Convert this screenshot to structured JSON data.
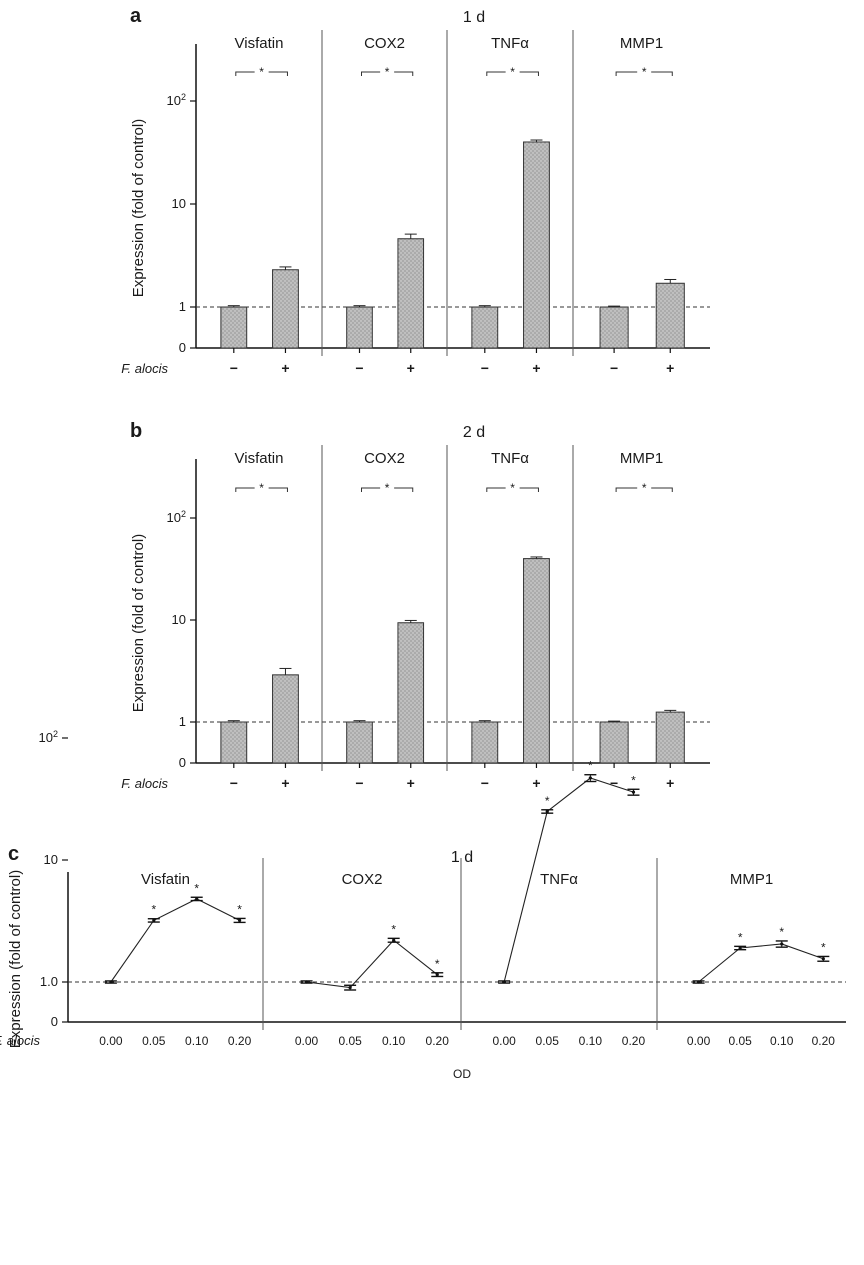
{
  "chart_data": [
    {
      "panel": "a",
      "type": "bar",
      "title": "1 d",
      "ylabel": "Expression (fold of control)",
      "yscale": "log",
      "yticks": [
        "0",
        "1",
        "10",
        "10²"
      ],
      "baseline_value": 1,
      "xlabel": "F. alocis",
      "categories": [
        "−",
        "+"
      ],
      "significance_mark": "*",
      "groups": [
        {
          "name": "Visfatin",
          "values": [
            1.0,
            2.3
          ],
          "errors": [
            0.03,
            0.15
          ]
        },
        {
          "name": "COX2",
          "values": [
            1.0,
            4.6
          ],
          "errors": [
            0.03,
            0.5
          ]
        },
        {
          "name": "TNFα",
          "values": [
            1.0,
            40.0
          ],
          "errors": [
            0.03,
            1.8
          ]
        },
        {
          "name": "MMP1",
          "values": [
            1.0,
            1.7
          ],
          "errors": [
            0.02,
            0.15
          ]
        }
      ]
    },
    {
      "panel": "b",
      "type": "bar",
      "title": "2 d",
      "ylabel": "Expression (fold of control)",
      "yscale": "log",
      "yticks": [
        "0",
        "1",
        "10",
        "10²"
      ],
      "baseline_value": 1,
      "xlabel": "F. alocis",
      "categories": [
        "−",
        "+"
      ],
      "significance_mark": "*",
      "groups": [
        {
          "name": "Visfatin",
          "values": [
            1.0,
            2.9
          ],
          "errors": [
            0.03,
            0.45
          ]
        },
        {
          "name": "COX2",
          "values": [
            1.0,
            9.4
          ],
          "errors": [
            0.03,
            0.5
          ]
        },
        {
          "name": "TNFα",
          "values": [
            1.0,
            40.0
          ],
          "errors": [
            0.03,
            1.5
          ]
        },
        {
          "name": "MMP1",
          "values": [
            1.0,
            1.25
          ],
          "errors": [
            0.02,
            0.05
          ]
        }
      ]
    },
    {
      "panel": "c",
      "type": "line",
      "title": "1 d",
      "ylabel": "Expression (fold of control)",
      "yscale": "log",
      "yticks": [
        "0",
        "1.0",
        "10",
        "10²"
      ],
      "baseline_value": 1,
      "xlabel": "F. alocis",
      "x_axis_title": "OD",
      "x": [
        "0.00",
        "0.05",
        "0.10",
        "0.20"
      ],
      "significance_mark": "*",
      "series": [
        {
          "name": "Visfatin",
          "values": [
            1.0,
            3.2,
            4.8,
            3.2
          ],
          "errors": [
            0.02,
            0.1,
            0.15,
            0.12
          ],
          "significant": [
            false,
            true,
            true,
            true
          ]
        },
        {
          "name": "COX2",
          "values": [
            1.0,
            0.9,
            2.2,
            1.15
          ],
          "errors": [
            0.02,
            0.04,
            0.08,
            0.04
          ],
          "significant": [
            false,
            false,
            true,
            true
          ]
        },
        {
          "name": "TNFα",
          "values": [
            1.0,
            25.0,
            47.0,
            36.0
          ],
          "errors": [
            0.02,
            0.8,
            3.0,
            2.0
          ],
          "significant": [
            false,
            true,
            true,
            true
          ]
        },
        {
          "name": "MMP1",
          "values": [
            1.0,
            1.9,
            2.05,
            1.55
          ],
          "errors": [
            0.02,
            0.06,
            0.12,
            0.07
          ],
          "significant": [
            false,
            true,
            true,
            true
          ]
        }
      ]
    }
  ]
}
